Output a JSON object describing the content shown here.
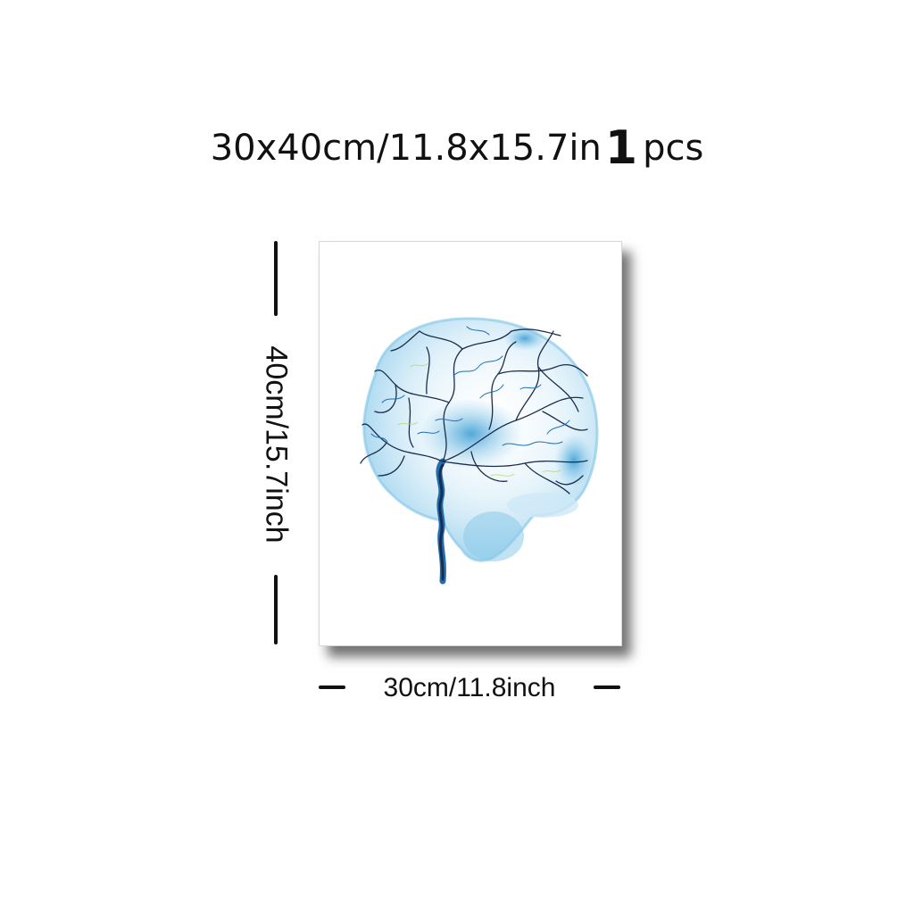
{
  "headline": {
    "size_text": "30x40cm/11.8x15.7in",
    "quantity": "1",
    "unit": "pcs"
  },
  "dimensions": {
    "height_label": "40cm/15.7inch",
    "width_label": "30cm/11.8inch"
  },
  "poster": {
    "subject": "watercolor-brain-vessels-art",
    "colors": {
      "wash_light": "#cfe9f7",
      "wash_mid": "#8ccbea",
      "wash_deep": "#3d9fd6",
      "vessel_dark": "#1b2d4f",
      "vessel_blue": "#1f6fb3",
      "accent_green": "#b9d86a"
    }
  }
}
